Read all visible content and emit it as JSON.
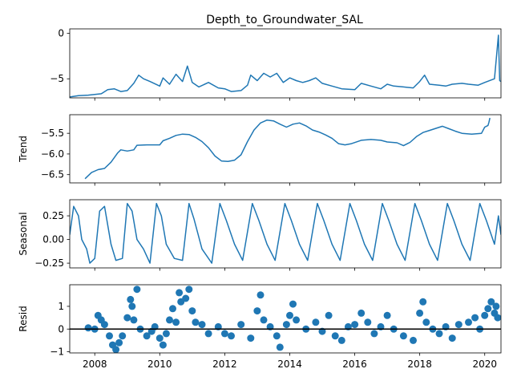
{
  "chart_data": {
    "type": "line",
    "title": "Depth_to_Groundwater_SAL",
    "x_ticks": [
      "2008",
      "2010",
      "2012",
      "2014",
      "2016",
      "2018",
      "2020"
    ],
    "x_range": [
      2007.23,
      2020.5
    ],
    "color": "#1f77b4",
    "panels": [
      {
        "key": "observed",
        "ylabel": "",
        "type": "line",
        "ylim": [
          -7.1,
          0.5
        ],
        "yticks": [
          {
            "v": 0,
            "label": "0"
          },
          {
            "v": -5,
            "label": "−5"
          }
        ],
        "points": [
          [
            2007.23,
            -7.0
          ],
          [
            2007.5,
            -6.85
          ],
          [
            2007.8,
            -6.8
          ],
          [
            2008.2,
            -6.65
          ],
          [
            2008.4,
            -6.2
          ],
          [
            2008.6,
            -6.1
          ],
          [
            2008.8,
            -6.4
          ],
          [
            2009.0,
            -6.3
          ],
          [
            2009.2,
            -5.5
          ],
          [
            2009.35,
            -4.6
          ],
          [
            2009.5,
            -5.0
          ],
          [
            2009.7,
            -5.3
          ],
          [
            2010.0,
            -5.8
          ],
          [
            2010.1,
            -4.9
          ],
          [
            2010.3,
            -5.6
          ],
          [
            2010.5,
            -4.5
          ],
          [
            2010.7,
            -5.3
          ],
          [
            2010.85,
            -3.6
          ],
          [
            2011.0,
            -5.4
          ],
          [
            2011.2,
            -5.9
          ],
          [
            2011.5,
            -5.4
          ],
          [
            2011.8,
            -6.0
          ],
          [
            2012.0,
            -6.1
          ],
          [
            2012.2,
            -6.4
          ],
          [
            2012.5,
            -6.3
          ],
          [
            2012.7,
            -5.7
          ],
          [
            2012.8,
            -4.6
          ],
          [
            2013.0,
            -5.2
          ],
          [
            2013.2,
            -4.4
          ],
          [
            2013.4,
            -4.8
          ],
          [
            2013.6,
            -4.4
          ],
          [
            2013.8,
            -5.4
          ],
          [
            2014.0,
            -4.9
          ],
          [
            2014.2,
            -5.2
          ],
          [
            2014.4,
            -5.4
          ],
          [
            2014.6,
            -5.2
          ],
          [
            2014.8,
            -4.9
          ],
          [
            2015.0,
            -5.5
          ],
          [
            2015.3,
            -5.8
          ],
          [
            2015.6,
            -6.1
          ],
          [
            2016.0,
            -6.2
          ],
          [
            2016.2,
            -5.5
          ],
          [
            2016.5,
            -5.8
          ],
          [
            2016.8,
            -6.1
          ],
          [
            2017.0,
            -5.6
          ],
          [
            2017.2,
            -5.8
          ],
          [
            2017.5,
            -5.9
          ],
          [
            2017.8,
            -6.0
          ],
          [
            2018.0,
            -5.3
          ],
          [
            2018.15,
            -4.6
          ],
          [
            2018.3,
            -5.6
          ],
          [
            2018.6,
            -5.7
          ],
          [
            2018.8,
            -5.8
          ],
          [
            2019.0,
            -5.6
          ],
          [
            2019.3,
            -5.5
          ],
          [
            2019.5,
            -5.6
          ],
          [
            2019.8,
            -5.7
          ],
          [
            2020.0,
            -5.4
          ],
          [
            2020.3,
            -5.0
          ],
          [
            2020.42,
            -0.2
          ],
          [
            2020.46,
            -5.2
          ],
          [
            2020.5,
            -5.3
          ]
        ]
      },
      {
        "key": "trend",
        "ylabel": "Trend",
        "type": "line",
        "ylim": [
          -6.7,
          -5.05
        ],
        "yticks": [
          {
            "v": -5.5,
            "label": "−5.5"
          },
          {
            "v": -6.0,
            "label": "−6.0"
          },
          {
            "v": -6.5,
            "label": "−6.5"
          }
        ],
        "points": [
          [
            2007.7,
            -6.6
          ],
          [
            2007.9,
            -6.45
          ],
          [
            2008.1,
            -6.38
          ],
          [
            2008.3,
            -6.35
          ],
          [
            2008.5,
            -6.2
          ],
          [
            2008.7,
            -5.98
          ],
          [
            2008.8,
            -5.9
          ],
          [
            2009.0,
            -5.93
          ],
          [
            2009.2,
            -5.9
          ],
          [
            2009.3,
            -5.79
          ],
          [
            2009.6,
            -5.78
          ],
          [
            2009.8,
            -5.78
          ],
          [
            2010.0,
            -5.78
          ],
          [
            2010.1,
            -5.68
          ],
          [
            2010.3,
            -5.62
          ],
          [
            2010.5,
            -5.55
          ],
          [
            2010.7,
            -5.52
          ],
          [
            2010.9,
            -5.53
          ],
          [
            2011.1,
            -5.6
          ],
          [
            2011.3,
            -5.7
          ],
          [
            2011.5,
            -5.85
          ],
          [
            2011.7,
            -6.05
          ],
          [
            2011.9,
            -6.17
          ],
          [
            2012.1,
            -6.18
          ],
          [
            2012.3,
            -6.15
          ],
          [
            2012.5,
            -6.02
          ],
          [
            2012.7,
            -5.7
          ],
          [
            2012.9,
            -5.42
          ],
          [
            2013.1,
            -5.25
          ],
          [
            2013.3,
            -5.18
          ],
          [
            2013.5,
            -5.2
          ],
          [
            2013.7,
            -5.28
          ],
          [
            2013.9,
            -5.35
          ],
          [
            2014.1,
            -5.28
          ],
          [
            2014.3,
            -5.25
          ],
          [
            2014.5,
            -5.32
          ],
          [
            2014.7,
            -5.42
          ],
          [
            2014.9,
            -5.47
          ],
          [
            2015.1,
            -5.54
          ],
          [
            2015.3,
            -5.62
          ],
          [
            2015.5,
            -5.75
          ],
          [
            2015.7,
            -5.78
          ],
          [
            2015.9,
            -5.75
          ],
          [
            2016.2,
            -5.67
          ],
          [
            2016.5,
            -5.65
          ],
          [
            2016.8,
            -5.67
          ],
          [
            2017.0,
            -5.71
          ],
          [
            2017.3,
            -5.73
          ],
          [
            2017.5,
            -5.8
          ],
          [
            2017.7,
            -5.72
          ],
          [
            2017.9,
            -5.58
          ],
          [
            2018.1,
            -5.48
          ],
          [
            2018.3,
            -5.43
          ],
          [
            2018.5,
            -5.38
          ],
          [
            2018.7,
            -5.33
          ],
          [
            2018.9,
            -5.39
          ],
          [
            2019.1,
            -5.45
          ],
          [
            2019.3,
            -5.5
          ],
          [
            2019.6,
            -5.52
          ],
          [
            2019.9,
            -5.5
          ],
          [
            2020.0,
            -5.35
          ],
          [
            2020.1,
            -5.31
          ],
          [
            2020.13,
            -5.23
          ],
          [
            2020.16,
            -5.13
          ]
        ]
      },
      {
        "key": "seasonal",
        "ylabel": "Seasonal",
        "type": "line",
        "ylim": [
          -0.3,
          0.42
        ],
        "yticks": [
          {
            "v": 0.25,
            "label": "0.25"
          },
          {
            "v": 0.0,
            "label": "0.00"
          },
          {
            "v": -0.25,
            "label": "−0.25"
          }
        ],
        "points": [
          [
            2007.23,
            0.05
          ],
          [
            2007.35,
            0.35
          ],
          [
            2007.5,
            0.25
          ],
          [
            2007.6,
            0.0
          ],
          [
            2007.75,
            -0.1
          ],
          [
            2007.85,
            -0.25
          ],
          [
            2008.0,
            -0.2
          ],
          [
            2008.15,
            0.3
          ],
          [
            2008.3,
            0.35
          ],
          [
            2008.5,
            -0.05
          ],
          [
            2008.65,
            -0.22
          ],
          [
            2008.85,
            -0.2
          ],
          [
            2009.0,
            0.38
          ],
          [
            2009.15,
            0.3
          ],
          [
            2009.3,
            0.0
          ],
          [
            2009.5,
            -0.1
          ],
          [
            2009.7,
            -0.25
          ],
          [
            2009.9,
            0.38
          ],
          [
            2010.05,
            0.25
          ],
          [
            2010.2,
            -0.05
          ],
          [
            2010.45,
            -0.2
          ],
          [
            2010.7,
            -0.22
          ],
          [
            2010.9,
            0.38
          ],
          [
            2011.05,
            0.22
          ],
          [
            2011.3,
            -0.1
          ],
          [
            2011.6,
            -0.25
          ],
          [
            2011.85,
            0.38
          ],
          [
            2012.05,
            0.2
          ],
          [
            2012.3,
            -0.05
          ],
          [
            2012.55,
            -0.22
          ],
          [
            2012.85,
            0.38
          ],
          [
            2013.05,
            0.2
          ],
          [
            2013.3,
            -0.05
          ],
          [
            2013.55,
            -0.22
          ],
          [
            2013.85,
            0.38
          ],
          [
            2014.05,
            0.2
          ],
          [
            2014.3,
            -0.05
          ],
          [
            2014.55,
            -0.22
          ],
          [
            2014.85,
            0.38
          ],
          [
            2015.05,
            0.2
          ],
          [
            2015.3,
            -0.05
          ],
          [
            2015.55,
            -0.22
          ],
          [
            2015.85,
            0.38
          ],
          [
            2016.05,
            0.2
          ],
          [
            2016.3,
            -0.05
          ],
          [
            2016.55,
            -0.22
          ],
          [
            2016.85,
            0.38
          ],
          [
            2017.05,
            0.2
          ],
          [
            2017.3,
            -0.05
          ],
          [
            2017.55,
            -0.22
          ],
          [
            2017.85,
            0.38
          ],
          [
            2018.05,
            0.2
          ],
          [
            2018.3,
            -0.05
          ],
          [
            2018.55,
            -0.22
          ],
          [
            2018.85,
            0.38
          ],
          [
            2019.05,
            0.2
          ],
          [
            2019.3,
            -0.05
          ],
          [
            2019.55,
            -0.22
          ],
          [
            2019.85,
            0.38
          ],
          [
            2020.05,
            0.2
          ],
          [
            2020.3,
            -0.05
          ],
          [
            2020.42,
            0.25
          ],
          [
            2020.5,
            0.05
          ]
        ]
      },
      {
        "key": "resid",
        "ylabel": "Resid",
        "type": "scatter",
        "ylim": [
          -1.05,
          1.95
        ],
        "yticks": [
          {
            "v": 1,
            "label": "1"
          },
          {
            "v": 0,
            "label": "0"
          },
          {
            "v": -1,
            "label": "−1"
          }
        ],
        "baseline": 0,
        "points": [
          [
            2007.8,
            0.05
          ],
          [
            2008.0,
            0.0
          ],
          [
            2008.1,
            0.6
          ],
          [
            2008.2,
            0.4
          ],
          [
            2008.3,
            0.2
          ],
          [
            2008.45,
            -0.3
          ],
          [
            2008.55,
            -0.7
          ],
          [
            2008.65,
            -0.9
          ],
          [
            2008.75,
            -0.6
          ],
          [
            2008.85,
            -0.3
          ],
          [
            2009.0,
            0.5
          ],
          [
            2009.1,
            1.3
          ],
          [
            2009.15,
            1.0
          ],
          [
            2009.2,
            0.4
          ],
          [
            2009.3,
            1.75
          ],
          [
            2009.4,
            0.0
          ],
          [
            2009.6,
            -0.3
          ],
          [
            2009.75,
            -0.1
          ],
          [
            2009.85,
            0.1
          ],
          [
            2010.0,
            -0.4
          ],
          [
            2010.1,
            -0.7
          ],
          [
            2010.2,
            -0.2
          ],
          [
            2010.3,
            0.4
          ],
          [
            2010.4,
            0.9
          ],
          [
            2010.5,
            0.3
          ],
          [
            2010.6,
            1.6
          ],
          [
            2010.65,
            1.2
          ],
          [
            2010.8,
            1.35
          ],
          [
            2010.9,
            1.75
          ],
          [
            2011.0,
            0.8
          ],
          [
            2011.1,
            0.3
          ],
          [
            2011.3,
            0.2
          ],
          [
            2011.5,
            -0.2
          ],
          [
            2011.8,
            0.1
          ],
          [
            2012.0,
            -0.2
          ],
          [
            2012.2,
            -0.3
          ],
          [
            2012.5,
            0.2
          ],
          [
            2012.8,
            -0.4
          ],
          [
            2013.0,
            0.8
          ],
          [
            2013.1,
            1.5
          ],
          [
            2013.2,
            0.4
          ],
          [
            2013.4,
            0.1
          ],
          [
            2013.6,
            -0.3
          ],
          [
            2013.7,
            -0.8
          ],
          [
            2013.9,
            0.2
          ],
          [
            2014.0,
            0.6
          ],
          [
            2014.1,
            1.1
          ],
          [
            2014.2,
            0.4
          ],
          [
            2014.5,
            0.0
          ],
          [
            2014.8,
            0.3
          ],
          [
            2015.0,
            -0.1
          ],
          [
            2015.2,
            0.6
          ],
          [
            2015.4,
            -0.3
          ],
          [
            2015.6,
            -0.5
          ],
          [
            2015.8,
            0.1
          ],
          [
            2016.0,
            0.2
          ],
          [
            2016.2,
            0.7
          ],
          [
            2016.4,
            0.3
          ],
          [
            2016.6,
            -0.2
          ],
          [
            2016.8,
            0.1
          ],
          [
            2017.0,
            0.6
          ],
          [
            2017.2,
            0.0
          ],
          [
            2017.5,
            -0.3
          ],
          [
            2017.8,
            -0.5
          ],
          [
            2018.0,
            0.7
          ],
          [
            2018.1,
            1.2
          ],
          [
            2018.2,
            0.3
          ],
          [
            2018.4,
            0.0
          ],
          [
            2018.6,
            -0.2
          ],
          [
            2018.8,
            0.1
          ],
          [
            2019.0,
            -0.4
          ],
          [
            2019.2,
            0.2
          ],
          [
            2019.5,
            0.3
          ],
          [
            2019.7,
            0.5
          ],
          [
            2019.85,
            0.0
          ],
          [
            2020.0,
            0.6
          ],
          [
            2020.1,
            0.9
          ],
          [
            2020.2,
            1.2
          ],
          [
            2020.3,
            0.7
          ],
          [
            2020.35,
            1.0
          ],
          [
            2020.4,
            0.5
          ]
        ]
      }
    ]
  }
}
